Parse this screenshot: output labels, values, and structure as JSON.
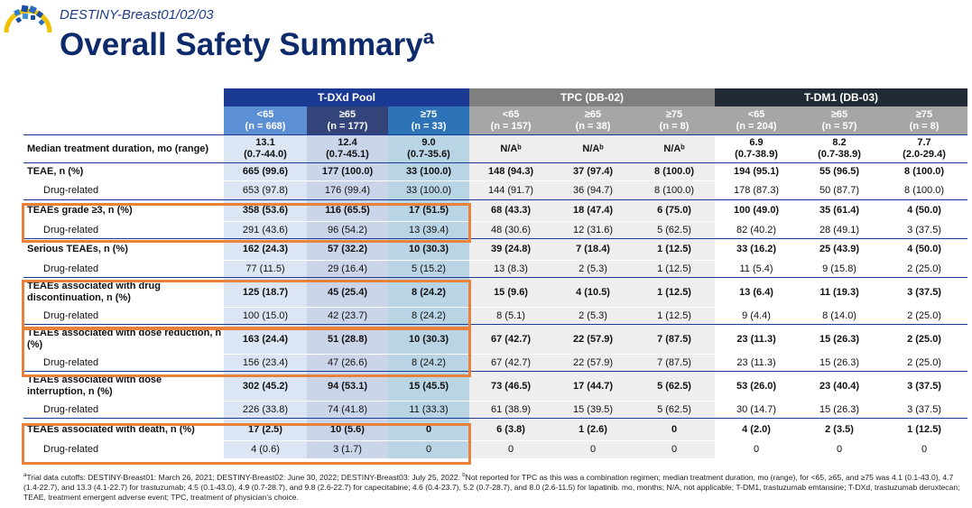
{
  "header": {
    "subtitle": "DESTINY-Breast01/02/03",
    "title": "Overall Safety Summary",
    "title_sup": "a"
  },
  "groups": [
    "T-DXd Pool",
    "TPC (DB-02)",
    "T-DM1 (DB-03)"
  ],
  "subgroups": [
    {
      "age": "<65",
      "n": "(n = 668)"
    },
    {
      "age": "≥65",
      "n": "(n = 177)"
    },
    {
      "age": "≥75",
      "n": "(n = 33)"
    },
    {
      "age": "<65",
      "n": "(n = 157)"
    },
    {
      "age": "≥65",
      "n": "(n = 38)"
    },
    {
      "age": "≥75",
      "n": "(n = 8)"
    },
    {
      "age": "<65",
      "n": "(n = 204)"
    },
    {
      "age": "≥65",
      "n": "(n = 57)"
    },
    {
      "age": "≥75",
      "n": "(n = 8)"
    }
  ],
  "rows": [
    {
      "label": "Median treatment duration, mo (range)",
      "bold": true,
      "cells": [
        "13.1\n(0.7-44.0)",
        "12.4\n(0.7-45.1)",
        "9.0\n(0.7-35.6)",
        "N/Aᵇ",
        "N/Aᵇ",
        "N/Aᵇ",
        "6.9\n(0.7-38.9)",
        "8.2\n(0.7-38.9)",
        "7.7\n(2.0-29.4)"
      ]
    },
    {
      "label": "TEAE, n (%)",
      "bold": true,
      "cells": [
        "665 (99.6)",
        "177 (100.0)",
        "33 (100.0)",
        "148 (94.3)",
        "37 (97.4)",
        "8 (100.0)",
        "194 (95.1)",
        "55 (96.5)",
        "8 (100.0)"
      ]
    },
    {
      "label": "Drug-related",
      "bold": false,
      "cells": [
        "653 (97.8)",
        "176 (99.4)",
        "33 (100.0)",
        "144 (91.7)",
        "36 (94.7)",
        "8 (100.0)",
        "178 (87.3)",
        "50 (87.7)",
        "8 (100.0)"
      ]
    },
    {
      "label": "TEAEs grade ≥3, n (%)",
      "bold": true,
      "cells": [
        "358 (53.6)",
        "116 (65.5)",
        "17 (51.5)",
        "68 (43.3)",
        "18 (47.4)",
        "6 (75.0)",
        "100 (49.0)",
        "35 (61.4)",
        "4 (50.0)"
      ]
    },
    {
      "label": "Drug-related",
      "bold": false,
      "cells": [
        "291 (43.6)",
        "96 (54.2)",
        "13 (39.4)",
        "48 (30.6)",
        "12 (31.6)",
        "5 (62.5)",
        "82 (40.2)",
        "28 (49.1)",
        "3 (37.5)"
      ]
    },
    {
      "label": "Serious TEAEs, n (%)",
      "bold": true,
      "cells": [
        "162 (24.3)",
        "57 (32.2)",
        "10 (30.3)",
        "39 (24.8)",
        "7 (18.4)",
        "1 (12.5)",
        "33 (16.2)",
        "25 (43.9)",
        "4 (50.0)"
      ]
    },
    {
      "label": "Drug-related",
      "bold": false,
      "cells": [
        "77 (11.5)",
        "29 (16.4)",
        "5 (15.2)",
        "13 (8.3)",
        "2 (5.3)",
        "1 (12.5)",
        "11 (5.4)",
        "9 (15.8)",
        "2 (25.0)"
      ]
    },
    {
      "label": "TEAEs associated with drug discontinuation, n (%)",
      "bold": true,
      "cells": [
        "125 (18.7)",
        "45 (25.4)",
        "8 (24.2)",
        "15 (9.6)",
        "4 (10.5)",
        "1 (12.5)",
        "13 (6.4)",
        "11 (19.3)",
        "3 (37.5)"
      ]
    },
    {
      "label": "Drug-related",
      "bold": false,
      "cells": [
        "100 (15.0)",
        "42 (23.7)",
        "8 (24.2)",
        "8 (5.1)",
        "2 (5.3)",
        "1 (12.5)",
        "9 (4.4)",
        "8 (14.0)",
        "2 (25.0)"
      ]
    },
    {
      "label": "TEAEs associated with dose reduction, n (%)",
      "bold": true,
      "cells": [
        "163 (24.4)",
        "51 (28.8)",
        "10 (30.3)",
        "67 (42.7)",
        "22 (57.9)",
        "7 (87.5)",
        "23 (11.3)",
        "15 (26.3)",
        "2 (25.0)"
      ]
    },
    {
      "label": "Drug-related",
      "bold": false,
      "cells": [
        "156 (23.4)",
        "47 (26.6)",
        "8 (24.2)",
        "67 (42.7)",
        "22 (57.9)",
        "7 (87.5)",
        "23 (11.3)",
        "15 (26.3)",
        "2 (25.0)"
      ]
    },
    {
      "label": "TEAEs associated with dose interruption, n (%)",
      "bold": true,
      "cells": [
        "302 (45.2)",
        "94 (53.1)",
        "15 (45.5)",
        "73 (46.5)",
        "17 (44.7)",
        "5 (62.5)",
        "53 (26.0)",
        "23 (40.4)",
        "3 (37.5)"
      ]
    },
    {
      "label": "Drug-related",
      "bold": false,
      "cells": [
        "226 (33.8)",
        "74 (41.8)",
        "11 (33.3)",
        "61 (38.9)",
        "15 (39.5)",
        "5 (62.5)",
        "30 (14.7)",
        "15 (26.3)",
        "3 (37.5)"
      ]
    },
    {
      "label": "TEAEs associated with death, n (%)",
      "bold": true,
      "cells": [
        "17 (2.5)",
        "10 (5.6)",
        "0",
        "6 (3.8)",
        "1 (2.6)",
        "0",
        "4 (2.0)",
        "2 (3.5)",
        "1 (12.5)"
      ]
    },
    {
      "label": "Drug-related",
      "bold": false,
      "cells": [
        "4 (0.6)",
        "3 (1.7)",
        "0",
        "0",
        "0",
        "0",
        "0",
        "0",
        "0"
      ]
    }
  ],
  "footnote": {
    "a_marker": "a",
    "a_text": "Trial data cutoffs: DESTINY-Breast01: March 26, 2021; DESTINY-Breast02: June 30, 2022; DESTINY-Breast03: July 25, 2022.",
    "b_marker": "b",
    "b_text": "Not reported for TPC as this was a combination regimen; median treatment duration, mo (range), for <65, ≥65, and ≥75 was 4.1 (0.1-43.0), 4.7 (1.4-22.7), and 13.3 (4.1-22.7) for trastuzumab; 4.5 (0.1-43.0), 4.9 (0.7-28.7), and 9.8 (2.6-22.7) for capecitabine; 4.6 (0.4-23.7), 5.2 (0.7-28.7), and 8.0 (2.6-11.5)  for lapatinib. mo, months; N/A, not applicable; T-DM1, trastuzumab emtansine; T-DXd, trastuzumab deruxtecan; TEAE, treatment emergent adverse event; TPC, treatment of physician’s choice."
  },
  "colors": {
    "tdxd_header": "#1b3a93",
    "tpc_header": "#7f7f7f",
    "tdm1_header": "#222a36",
    "highlight_box": "#e8823a",
    "title": "#0d2a6b"
  }
}
